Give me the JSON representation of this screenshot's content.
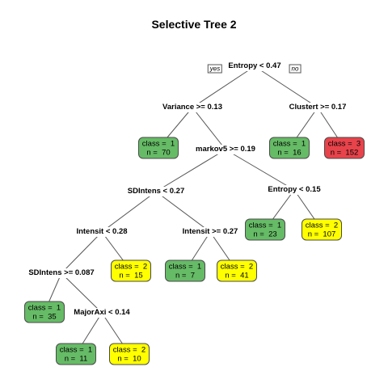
{
  "title": "Selective Tree 2",
  "branch_labels": {
    "yes": "yes",
    "no": "no"
  },
  "colors": {
    "class_1": "#66BB66",
    "class_2": "#FFFF00",
    "class_3": "#E8434B"
  },
  "nodes": [
    {
      "id": "n1",
      "type": "split",
      "label": "Entropy < 0.47"
    },
    {
      "id": "n2",
      "type": "split",
      "label": "Variance >= 0.13"
    },
    {
      "id": "n3",
      "type": "split",
      "label": "Clustert >= 0.17"
    },
    {
      "id": "n4",
      "type": "leaf",
      "class": "1",
      "n": "70"
    },
    {
      "id": "n5",
      "type": "split",
      "label": "markov5 >= 0.19"
    },
    {
      "id": "n6",
      "type": "leaf",
      "class": "1",
      "n": "16"
    },
    {
      "id": "n7",
      "type": "leaf",
      "class": "3",
      "n": "152"
    },
    {
      "id": "n8",
      "type": "split",
      "label": "SDIntens < 0.27"
    },
    {
      "id": "n9",
      "type": "split",
      "label": "Entropy < 0.15"
    },
    {
      "id": "n10",
      "type": "split",
      "label": "Intensit < 0.28"
    },
    {
      "id": "n11",
      "type": "split",
      "label": "Intensit >= 0.27"
    },
    {
      "id": "n12",
      "type": "leaf",
      "class": "1",
      "n": "23"
    },
    {
      "id": "n13",
      "type": "leaf",
      "class": "2",
      "n": "107"
    },
    {
      "id": "n14",
      "type": "split",
      "label": "SDIntens >= 0.087"
    },
    {
      "id": "n15",
      "type": "leaf",
      "class": "2",
      "n": "15"
    },
    {
      "id": "n16",
      "type": "leaf",
      "class": "1",
      "n": "7"
    },
    {
      "id": "n17",
      "type": "leaf",
      "class": "2",
      "n": "41"
    },
    {
      "id": "n18",
      "type": "leaf",
      "class": "1",
      "n": "35"
    },
    {
      "id": "n19",
      "type": "split",
      "label": "MajorAxi < 0.14"
    },
    {
      "id": "n20",
      "type": "leaf",
      "class": "1",
      "n": "11"
    },
    {
      "id": "n21",
      "type": "leaf",
      "class": "2",
      "n": "10"
    }
  ],
  "edges": [
    [
      "n1",
      "n2"
    ],
    [
      "n1",
      "n3"
    ],
    [
      "n2",
      "n4"
    ],
    [
      "n2",
      "n5"
    ],
    [
      "n3",
      "n6"
    ],
    [
      "n3",
      "n7"
    ],
    [
      "n5",
      "n8"
    ],
    [
      "n5",
      "n9"
    ],
    [
      "n8",
      "n10"
    ],
    [
      "n8",
      "n11"
    ],
    [
      "n9",
      "n12"
    ],
    [
      "n9",
      "n13"
    ],
    [
      "n10",
      "n14"
    ],
    [
      "n10",
      "n15"
    ],
    [
      "n11",
      "n16"
    ],
    [
      "n11",
      "n17"
    ],
    [
      "n14",
      "n18"
    ],
    [
      "n14",
      "n19"
    ],
    [
      "n19",
      "n20"
    ],
    [
      "n19",
      "n21"
    ]
  ]
}
